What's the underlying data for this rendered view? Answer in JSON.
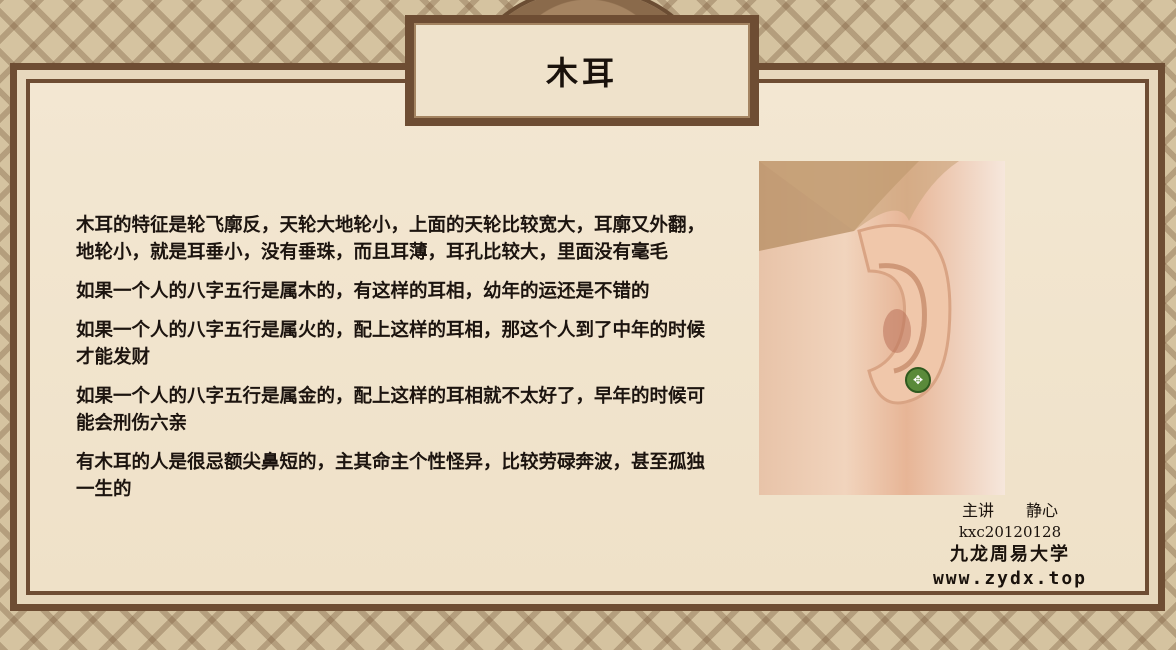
{
  "title": "木耳",
  "paragraphs": [
    "木耳的特征是轮飞廓反，天轮大地轮小，上面的天轮比较宽大，耳廓又外翻，地轮小，就是耳垂小，没有垂珠，而且耳薄，耳孔比较大，里面没有毫毛",
    "如果一个人的八字五行是属木的，有这样的耳相，幼年的运还是不错的",
    "如果一个人的八字五行是属火的，配上这样的耳相，那这个人到了中年的时候才能发财",
    "如果一个人的八字五行是属金的，配上这样的耳相就不太好了，早年的时候可能会刑伤六亲",
    "有木耳的人是很忌额尖鼻短的，主其命主个性怪异，比较劳碌奔波，甚至孤独一生的"
  ],
  "credits": {
    "lecturer": "主讲　　静心",
    "code": "kxc20120128",
    "university": "九龙周易大学",
    "website": "www.zydx.top"
  },
  "colors": {
    "frame": "#6e4d33",
    "panel": "#f1e4cd",
    "text": "#1c140f"
  }
}
